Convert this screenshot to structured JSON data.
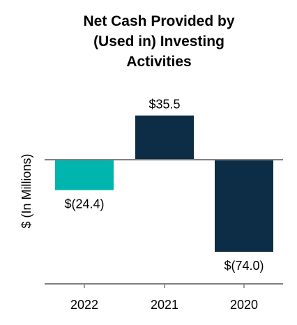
{
  "chart_data": {
    "type": "bar",
    "title_lines": [
      "Net Cash Provided by",
      "(Used in) Investing",
      "Activities"
    ],
    "ylabel": "$ (In Millions)",
    "xlabel": "",
    "categories": [
      "2022",
      "2021",
      "2020"
    ],
    "values": [
      -24.4,
      35.5,
      -74.0
    ],
    "data_labels": [
      "$(24.4)",
      "$35.5",
      "$(74.0)"
    ],
    "bar_colors": [
      "#00b5ad",
      "#0c2d45",
      "#0c2d45"
    ],
    "axis_color": "#808080",
    "grid": false,
    "legend": "none"
  }
}
